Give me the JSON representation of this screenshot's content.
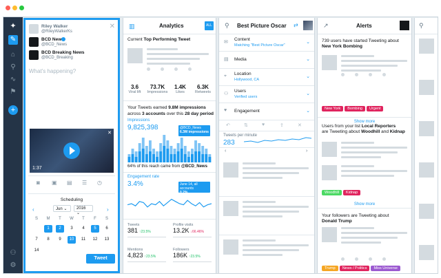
{
  "compose": {
    "account1": {
      "name": "Riley Walker",
      "handle": "@RileyWalkerKs"
    },
    "account2": {
      "name": "BCD News",
      "handle": "@BCD_News"
    },
    "account3": {
      "name": "BCD Breaking News",
      "handle": "@BCD_Breaking"
    },
    "placeholder": "What's happening?",
    "video_duration": "1:37",
    "scheduling_label": "Scheduling",
    "month": "Jun",
    "year": "2016",
    "weekdays": [
      "S",
      "M",
      "T",
      "W",
      "T",
      "F",
      "S"
    ],
    "calendar_days": [
      "1",
      "2",
      "3",
      "4",
      "5",
      "6",
      "7",
      "8",
      "9",
      "10",
      "11",
      "12",
      "13",
      "14"
    ],
    "tweet_button": "Tweet"
  },
  "analytics": {
    "title": "Analytics",
    "badge": "ALL",
    "top_tweet_prefix": "Current ",
    "top_tweet_bold": "Top Performing Tweet",
    "stats": [
      {
        "value": "3.6",
        "label": "Viral lift"
      },
      {
        "value": "73.7K",
        "label": "Impressions"
      },
      {
        "value": "1.4K",
        "label": "Likes"
      },
      {
        "value": "6.3K",
        "label": "Retweets"
      }
    ],
    "earned_line1_a": "Your Tweets earned ",
    "earned_line1_b": "9.8M impressions",
    "earned_line2_a": "across ",
    "earned_line2_b": "3 accounts",
    "earned_line2_c": " over this ",
    "earned_line2_d": "28 day period",
    "impressions_label": "Impressions",
    "impressions_value": "9,825,398",
    "tooltip1_name": "@BCD_News",
    "tooltip1_value": "6.3M impressions",
    "reach_a": "64% of this reach came from ",
    "reach_b": "@BCD_News",
    "engagement_label": "Engagement rate",
    "engagement_value": "3.4%",
    "tooltip2_name": "June 14, all accounts",
    "tooltip2_value": "0.2% engagement rate",
    "metrics": [
      {
        "label": "Tweets",
        "value": "381",
        "delta": "↑23.5%",
        "dir": "up"
      },
      {
        "label": "Profile visits",
        "value": "13.2K",
        "delta": "↓66.46%",
        "dir": "down"
      },
      {
        "label": "Mentions",
        "value": "4,823",
        "delta": "↑23.5%",
        "dir": "up"
      },
      {
        "label": "Followers",
        "value": "186K",
        "delta": "↑23.5%",
        "dir": "up"
      }
    ],
    "impressions_bars": [
      0.3,
      0.5,
      0.4,
      0.7,
      0.9,
      0.6,
      0.8,
      0.5,
      0.4,
      0.7,
      1.0,
      0.8,
      0.6,
      0.5,
      0.7,
      0.9,
      0.6,
      0.4,
      0.5,
      0.8,
      0.7,
      0.6,
      0.5,
      0.3
    ],
    "impressions_bars_dark": [
      0.2,
      0.3,
      0.2,
      0.4,
      0.5,
      0.3,
      0.4,
      0.3,
      0.2,
      0.4,
      0.6,
      0.5,
      0.3,
      0.3,
      0.4,
      0.5,
      0.3,
      0.2,
      0.3,
      0.4,
      0.4,
      0.3,
      0.3,
      0.2
    ],
    "engagement_line": [
      0.45,
      0.5,
      0.4,
      0.6,
      0.55,
      0.35,
      0.5,
      0.45,
      0.6,
      0.4,
      0.55,
      0.7,
      0.6,
      0.5,
      0.45,
      0.65,
      0.5,
      0.4,
      0.55,
      0.35,
      0.45,
      0.5
    ]
  },
  "search": {
    "query": "Best Picture Oscar",
    "filters": [
      {
        "label": "Content",
        "value": "Matching \"Best Picture Oscar\""
      },
      {
        "label": "Media",
        "value": ""
      },
      {
        "label": "Location",
        "value": "Hollywood, CA"
      },
      {
        "label": "Users",
        "value": "Verified users"
      },
      {
        "label": "Engagement",
        "value": ""
      }
    ],
    "tpm_label": "Tweets per minute",
    "tpm_value": "283"
  },
  "alerts": {
    "title": "Alerts",
    "card1_a": "739 users have started Tweeting about ",
    "card1_b": "New York Bombing",
    "card1_tags": [
      "New York",
      "Bombing",
      "Urgent"
    ],
    "card2_a": "Users from your list ",
    "card2_b": "Local Reporters",
    "card2_c": " are Tweeting about ",
    "card2_d": "Woodhill",
    "card2_e": " and ",
    "card2_f": "Kidnap",
    "card2_tags": [
      "Woodhill",
      "Kidnap"
    ],
    "card3_a": "Your followers are Tweeting about ",
    "card3_b": "Donald Trump",
    "card3_tags": [
      "Trump",
      "News / Politics",
      "Miss Universe"
    ],
    "show_more": "Show more",
    "tag_colors": {
      "pink": "#e0245e",
      "yellow": "#f5a623",
      "green": "#4cd964",
      "purple": "#9b59d0"
    }
  }
}
